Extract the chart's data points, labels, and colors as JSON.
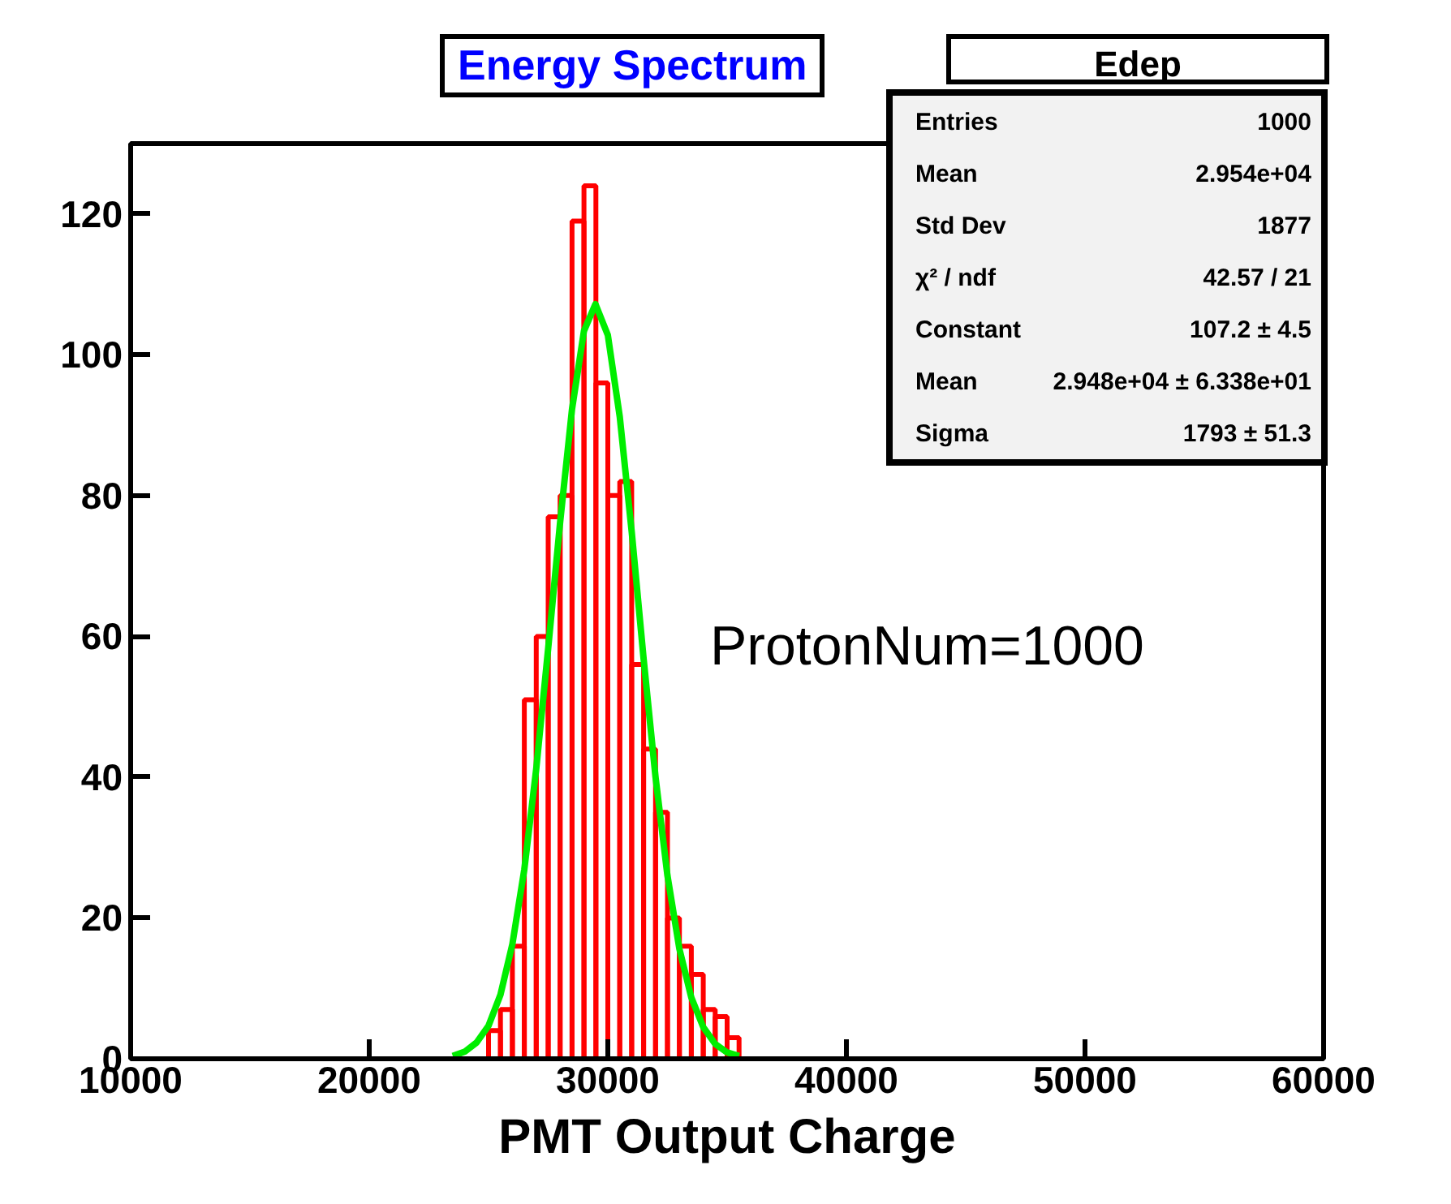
{
  "chart_data": {
    "type": "histogram",
    "title": "Energy Spectrum",
    "xlabel": "PMT Output Charge",
    "xlim": [
      10000,
      60000
    ],
    "ylim": [
      0,
      130
    ],
    "xticks": [
      10000,
      20000,
      30000,
      40000,
      50000,
      60000
    ],
    "yticks": [
      0,
      20,
      40,
      60,
      80,
      100,
      120
    ],
    "grid": false,
    "series": [
      {
        "type": "histogram",
        "color": "#ff0000",
        "bins": [
          10000,
          25000,
          25500,
          26000,
          26500,
          27000,
          27500,
          28000,
          28500,
          29000,
          29500,
          30000,
          30500,
          31000,
          31500,
          32000,
          32500,
          33000,
          33500,
          34000,
          34500,
          35000,
          35500,
          60000
        ],
        "values": [
          0,
          4,
          7,
          16,
          51,
          60,
          77,
          80,
          119,
          124,
          96,
          80,
          82,
          56,
          44,
          35,
          20,
          16,
          12,
          7,
          6,
          3,
          0
        ]
      },
      {
        "type": "line",
        "color": "#00ee00",
        "x": [
          23500,
          24000,
          24500,
          25000,
          25500,
          26000,
          26500,
          27000,
          27500,
          28000,
          28500,
          29000,
          29480,
          30000,
          30500,
          31000,
          31500,
          32000,
          32500,
          33000,
          33500,
          34000,
          34500,
          35000,
          35500
        ],
        "values": [
          0.4,
          1.0,
          2.3,
          4.7,
          9.1,
          16.3,
          26.9,
          41.2,
          58.3,
          76.2,
          92.3,
          103.4,
          107.2,
          102.8,
          91.2,
          74.9,
          56.8,
          40.0,
          26.0,
          15.6,
          8.7,
          4.5,
          2.1,
          0.9,
          0.4
        ]
      }
    ],
    "annotations": [
      "ProtonNum=1000",
      "Edep",
      "Entries",
      "1000",
      "Mean",
      "2.954e+04",
      "Std Dev",
      "1877",
      "χ² / ndf",
      "42.57 / 21",
      "Constant",
      "107.2 ± 4.5",
      "Mean",
      "2.948e+04 ± 6.338e+01",
      "Sigma",
      "1793 ± 51.3"
    ]
  }
}
